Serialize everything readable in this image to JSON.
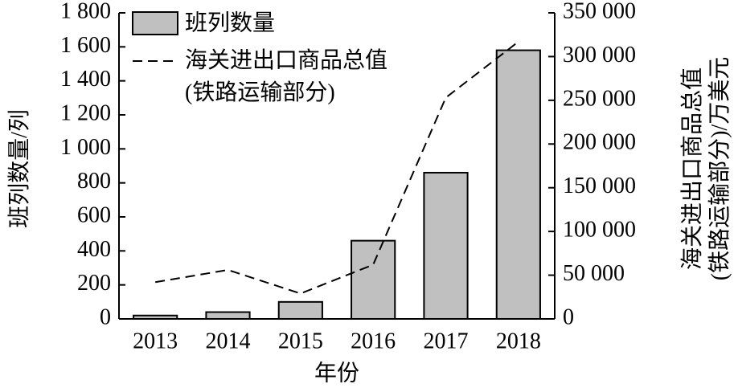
{
  "chart_data": {
    "type": "bar-line",
    "categories": [
      "2013",
      "2014",
      "2015",
      "2016",
      "2017",
      "2018"
    ],
    "series": [
      {
        "name": "班列数量",
        "color": "#c0c0c0",
        "type": "bar",
        "values": [
          20,
          40,
          100,
          460,
          860,
          1580
        ]
      },
      {
        "name": "海关进出口商品总值\n(铁路运输部分)",
        "color": "#000000",
        "type": "line",
        "dashed": true,
        "axis": "y2",
        "values": [
          42000,
          56000,
          29000,
          62000,
          253000,
          317000
        ]
      }
    ],
    "ylim": [
      0,
      1800
    ],
    "yticks": [
      0,
      200,
      400,
      600,
      800,
      {
        "value": 1000,
        "label": "1 000"
      },
      {
        "value": 1200,
        "label": "1 200"
      },
      {
        "value": 1400,
        "label": "1 400"
      },
      {
        "value": 1600,
        "label": "1 600"
      },
      {
        "value": 1800,
        "label": "1 800"
      }
    ],
    "y2lim": [
      0,
      350000
    ],
    "y2ticks": [
      0,
      {
        "value": 50000,
        "label": "50 000"
      },
      {
        "value": 100000,
        "label": "100 000"
      },
      {
        "value": 150000,
        "label": "150 000"
      },
      {
        "value": 200000,
        "label": "200 000"
      },
      {
        "value": 250000,
        "label": "250 000"
      },
      {
        "value": 300000,
        "label": "300 000"
      },
      {
        "value": 350000,
        "label": "350 000"
      }
    ],
    "xlabel": "年份",
    "ylabel": "班列数量/列",
    "y2label": "海关进出口商品总值\n(铁路运输部分)/万美元"
  }
}
